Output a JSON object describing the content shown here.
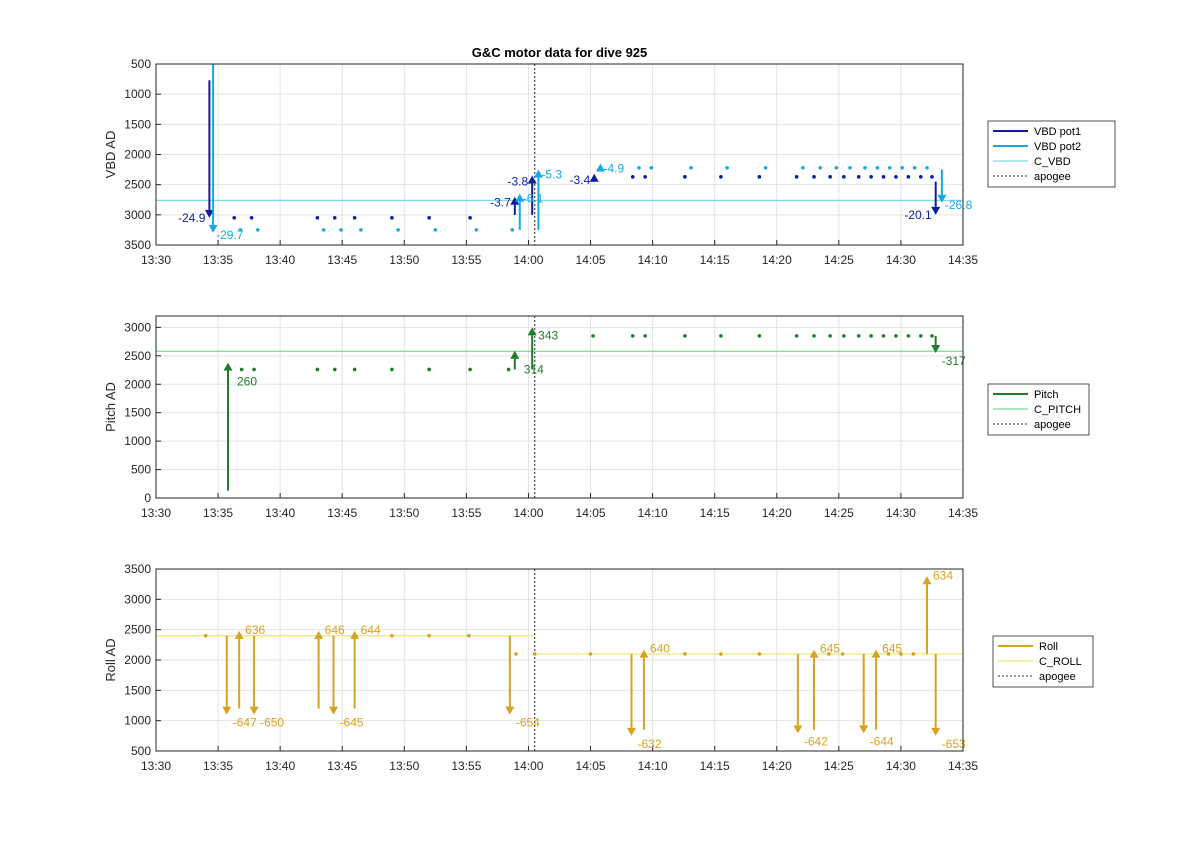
{
  "figure": {
    "title": "G&C motor data for dive 925"
  },
  "colors": {
    "vbd_pot1": "#0a1f9e",
    "vbd_pot2": "#17a9e6",
    "c_vbd": "#7fd8ee",
    "pitch": "#1e7d2a",
    "c_pitch": "#7ddc8a",
    "roll": "#d9a21e",
    "c_roll": "#ece27a",
    "apogee": "#555555",
    "grid": "#e3e3e3",
    "axis": "#262626"
  },
  "chart_data": [
    {
      "id": "vbd",
      "type": "line",
      "title": "G&C motor data for dive 925",
      "ylabel": "VBD AD",
      "xlabel": "",
      "y_reversed": true,
      "xlim": [
        "13:30",
        "14:35"
      ],
      "ylim": [
        500,
        3500
      ],
      "xticks": [
        "13:30",
        "13:35",
        "13:40",
        "13:45",
        "13:50",
        "13:55",
        "14:00",
        "14:05",
        "14:10",
        "14:15",
        "14:20",
        "14:25",
        "14:30",
        "14:35"
      ],
      "yticks": [
        500,
        1000,
        1500,
        2000,
        2500,
        3000,
        3500
      ],
      "grid": true,
      "legend": {
        "placement": "outside-right",
        "entries": [
          {
            "label": "VBD pot1",
            "style": "solid",
            "color_key": "vbd_pot1",
            "thick": true
          },
          {
            "label": "VBD pot2",
            "style": "solid",
            "color_key": "vbd_pot2",
            "thick": true
          },
          {
            "label": "C_VBD",
            "style": "solid",
            "color_key": "c_vbd",
            "thick": false
          },
          {
            "label": "apogee",
            "style": "dotted",
            "color_key": "apogee",
            "thick": false
          }
        ]
      },
      "reference_lines": [
        {
          "name": "C_VBD",
          "orientation": "horizontal",
          "value": 2760,
          "color_key": "c_vbd"
        },
        {
          "name": "apogee",
          "orientation": "vertical",
          "value": "14:00.5",
          "color_key": "apogee"
        }
      ],
      "series": [
        {
          "name": "VBD pot1",
          "kind": "points",
          "color_key": "vbd_pot1",
          "x": [
            "13:36.3",
            "13:37.7",
            "13:43",
            "13:44.4",
            "13:46",
            "13:49",
            "13:52",
            "13:55.3",
            "14:08.4",
            "14:09.4",
            "14:12.6",
            "14:15.5",
            "14:18.6",
            "14:21.6",
            "14:23",
            "14:24.3",
            "14:25.4",
            "14:26.6",
            "14:27.6",
            "14:28.6",
            "14:29.6",
            "14:30.6",
            "14:31.6",
            "14:32.5"
          ],
          "y": [
            3050,
            3050,
            3050,
            3050,
            3050,
            3050,
            3050,
            3050,
            2370,
            2370,
            2370,
            2370,
            2370,
            2370,
            2370,
            2370,
            2370,
            2370,
            2370,
            2370,
            2370,
            2370,
            2370,
            2370
          ]
        },
        {
          "name": "VBD pot2",
          "kind": "points",
          "color_key": "vbd_pot2",
          "x": [
            "13:36.8",
            "13:38.2",
            "13:43.5",
            "13:44.9",
            "13:46.5",
            "13:49.5",
            "13:52.5",
            "13:55.8",
            "13:58.7",
            "14:08.9",
            "14:09.9",
            "14:13.1",
            "14:16",
            "14:19.1",
            "14:22.1",
            "14:23.5",
            "14:24.8",
            "14:25.9",
            "14:27.1",
            "14:28.1",
            "14:29.1",
            "14:30.1",
            "14:31.1",
            "14:32.1"
          ],
          "y": [
            3250,
            3250,
            3250,
            3250,
            3250,
            3250,
            3250,
            3250,
            3250,
            2220,
            2220,
            2220,
            2220,
            2220,
            2220,
            2220,
            2220,
            2220,
            2220,
            2220,
            2220,
            2220,
            2220,
            2220
          ]
        },
        {
          "name": "VBD pot1",
          "kind": "arrows",
          "color_key": "vbd_pot1",
          "x": [
            "13:34.3",
            "13:58.9",
            "14:00.3",
            "14:05.3",
            "14:32.8"
          ],
          "y_from": [
            770,
            3000,
            3000,
            2450,
            2450
          ],
          "y_to": [
            3050,
            2700,
            2350,
            2320,
            3000
          ],
          "labels": [
            "-24.9",
            "-3.7",
            "-3.8",
            "-3.4",
            "-20.1"
          ]
        },
        {
          "name": "VBD pot2",
          "kind": "arrows",
          "color_key": "vbd_pot2",
          "x": [
            "13:34.6",
            "13:59.3",
            "14:00.8",
            "14:05.8",
            "14:33.3"
          ],
          "y_from": [
            500,
            3250,
            3250,
            2250,
            2250
          ],
          "y_to": [
            3300,
            2650,
            2250,
            2150,
            2800
          ],
          "labels": [
            "-29.7",
            "-6.1",
            "-5.3",
            "-4.9",
            "-26.8"
          ]
        }
      ]
    },
    {
      "id": "pitch",
      "type": "line",
      "ylabel": "Pitch AD",
      "xlabel": "",
      "y_reversed": false,
      "xlim": [
        "13:30",
        "14:35"
      ],
      "ylim": [
        0,
        3200
      ],
      "xticks": [
        "13:30",
        "13:35",
        "13:40",
        "13:45",
        "13:50",
        "13:55",
        "14:00",
        "14:05",
        "14:10",
        "14:15",
        "14:20",
        "14:25",
        "14:30",
        "14:35"
      ],
      "yticks": [
        0,
        500,
        1000,
        1500,
        2000,
        2500,
        3000
      ],
      "grid": true,
      "legend": {
        "placement": "outside-right",
        "entries": [
          {
            "label": "Pitch",
            "style": "solid",
            "color_key": "pitch",
            "thick": true
          },
          {
            "label": "C_PITCH",
            "style": "solid",
            "color_key": "c_pitch",
            "thick": false
          },
          {
            "label": "apogee",
            "style": "dotted",
            "color_key": "apogee",
            "thick": false
          }
        ]
      },
      "reference_lines": [
        {
          "name": "C_PITCH",
          "orientation": "horizontal",
          "value": 2580,
          "color_key": "c_pitch"
        },
        {
          "name": "apogee",
          "orientation": "vertical",
          "value": "14:00.5",
          "color_key": "apogee"
        }
      ],
      "series": [
        {
          "name": "Pitch",
          "kind": "points",
          "color_key": "pitch",
          "x": [
            "13:36.9",
            "13:37.9",
            "13:43",
            "13:44.4",
            "13:46",
            "13:49",
            "13:52",
            "13:55.3",
            "13:58.4",
            "14:05.2",
            "14:08.4",
            "14:09.4",
            "14:12.6",
            "14:15.5",
            "14:18.6",
            "14:21.6",
            "14:23",
            "14:24.3",
            "14:25.4",
            "14:26.6",
            "14:27.6",
            "14:28.6",
            "14:29.6",
            "14:30.6",
            "14:31.6",
            "14:32.5"
          ],
          "y": [
            2260,
            2260,
            2260,
            2260,
            2260,
            2260,
            2260,
            2260,
            2260,
            2850,
            2850,
            2850,
            2850,
            2850,
            2850,
            2850,
            2850,
            2850,
            2850,
            2850,
            2850,
            2850,
            2850,
            2850,
            2850,
            2850
          ]
        },
        {
          "name": "Pitch",
          "kind": "arrows",
          "color_key": "pitch",
          "x": [
            "13:35.8",
            "13:58.9",
            "14:00.3",
            "14:32.8"
          ],
          "y_from": [
            130,
            2260,
            2260,
            2850
          ],
          "y_to": [
            2380,
            2590,
            3000,
            2550
          ],
          "labels": [
            "260",
            "314",
            "343",
            "-317"
          ]
        }
      ]
    },
    {
      "id": "roll",
      "type": "line",
      "ylabel": "Roll AD",
      "xlabel": "",
      "y_reversed": false,
      "xlim": [
        "13:30",
        "14:35"
      ],
      "ylim": [
        500,
        3500
      ],
      "xticks": [
        "13:30",
        "13:35",
        "13:40",
        "13:45",
        "13:50",
        "13:55",
        "14:00",
        "14:05",
        "14:10",
        "14:15",
        "14:20",
        "14:25",
        "14:30",
        "14:35"
      ],
      "yticks": [
        500,
        1000,
        1500,
        2000,
        2500,
        3000,
        3500
      ],
      "grid": true,
      "legend": {
        "placement": "outside-right",
        "entries": [
          {
            "label": "Roll",
            "style": "solid",
            "color_key": "roll",
            "thick": true
          },
          {
            "label": "C_ROLL",
            "style": "solid",
            "color_key": "c_roll",
            "thick": false
          },
          {
            "label": "apogee",
            "style": "dotted",
            "color_key": "apogee",
            "thick": false
          }
        ]
      },
      "reference_lines": [
        {
          "name": "C_ROLL",
          "orientation": "horizontal",
          "value": 2400,
          "color_key": "c_roll",
          "x_to": "14:00.5"
        },
        {
          "name": "C_ROLL",
          "orientation": "horizontal",
          "value": 2100,
          "color_key": "c_roll",
          "x_from": "14:00.5"
        },
        {
          "name": "apogee",
          "orientation": "vertical",
          "value": "14:00.5",
          "color_key": "apogee"
        }
      ],
      "series": [
        {
          "name": "Roll",
          "kind": "points",
          "color_key": "roll",
          "x": [
            "13:34",
            "13:49",
            "13:52",
            "13:55.2",
            "13:59",
            "14:00.5",
            "14:05",
            "14:12.6",
            "14:15.5",
            "14:18.6",
            "14:24.2",
            "14:25.3",
            "14:29",
            "14:30",
            "14:31"
          ],
          "y": [
            2400,
            2400,
            2400,
            2400,
            2100,
            2100,
            2100,
            2100,
            2100,
            2100,
            2100,
            2100,
            2100,
            2100,
            2100
          ]
        },
        {
          "name": "Roll",
          "kind": "arrows",
          "color_key": "roll",
          "x": [
            "13:35.7",
            "13:36.7",
            "13:37.9",
            "13:43.1",
            "13:44.3",
            "13:46",
            "13:58.5",
            "14:08.3",
            "14:09.3",
            "14:21.7",
            "14:23",
            "14:27",
            "14:28",
            "14:32.1",
            "14:32.8"
          ],
          "y_from": [
            2400,
            1200,
            2400,
            1200,
            2400,
            1200,
            2400,
            2100,
            850,
            2100,
            850,
            2100,
            850,
            2100,
            2100
          ],
          "y_to": [
            1100,
            2480,
            1100,
            2480,
            1100,
            2480,
            1100,
            750,
            2170,
            790,
            2170,
            790,
            2170,
            3380,
            750
          ],
          "labels": [
            "-647",
            "636",
            "-650",
            "646",
            "-645",
            "644",
            "-654",
            "-632",
            "640",
            "-642",
            "645",
            "-644",
            "645",
            "634",
            "-653"
          ]
        }
      ]
    }
  ]
}
